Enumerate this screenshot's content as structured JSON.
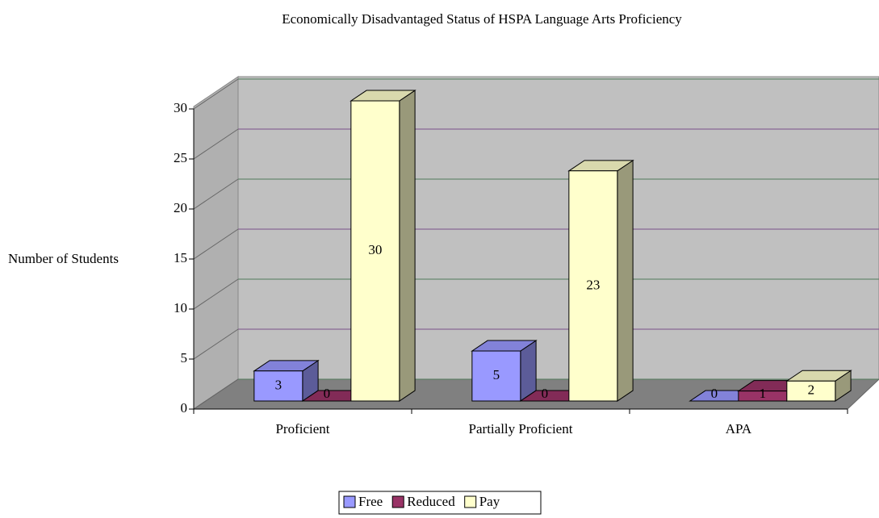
{
  "chart_data": {
    "type": "bar3d",
    "title": "Economically Disadvantaged Status of HSPA Language Arts Proficiency",
    "y_label": "Number of Students",
    "categories": [
      "Proficient",
      "Partially Proficient",
      "APA"
    ],
    "series": [
      {
        "name": "Free",
        "color": "#9999ff",
        "values": [
          3,
          5,
          0
        ]
      },
      {
        "name": "Reduced",
        "color": "#993366",
        "values": [
          0,
          0,
          1
        ]
      },
      {
        "name": "Pay",
        "color": "#ffffcc",
        "values": [
          30,
          23,
          2
        ]
      }
    ],
    "ylim": [
      0,
      30
    ],
    "yticks": [
      0,
      5,
      10,
      15,
      20,
      25,
      30
    ],
    "grid": true,
    "legend": "bottom"
  }
}
